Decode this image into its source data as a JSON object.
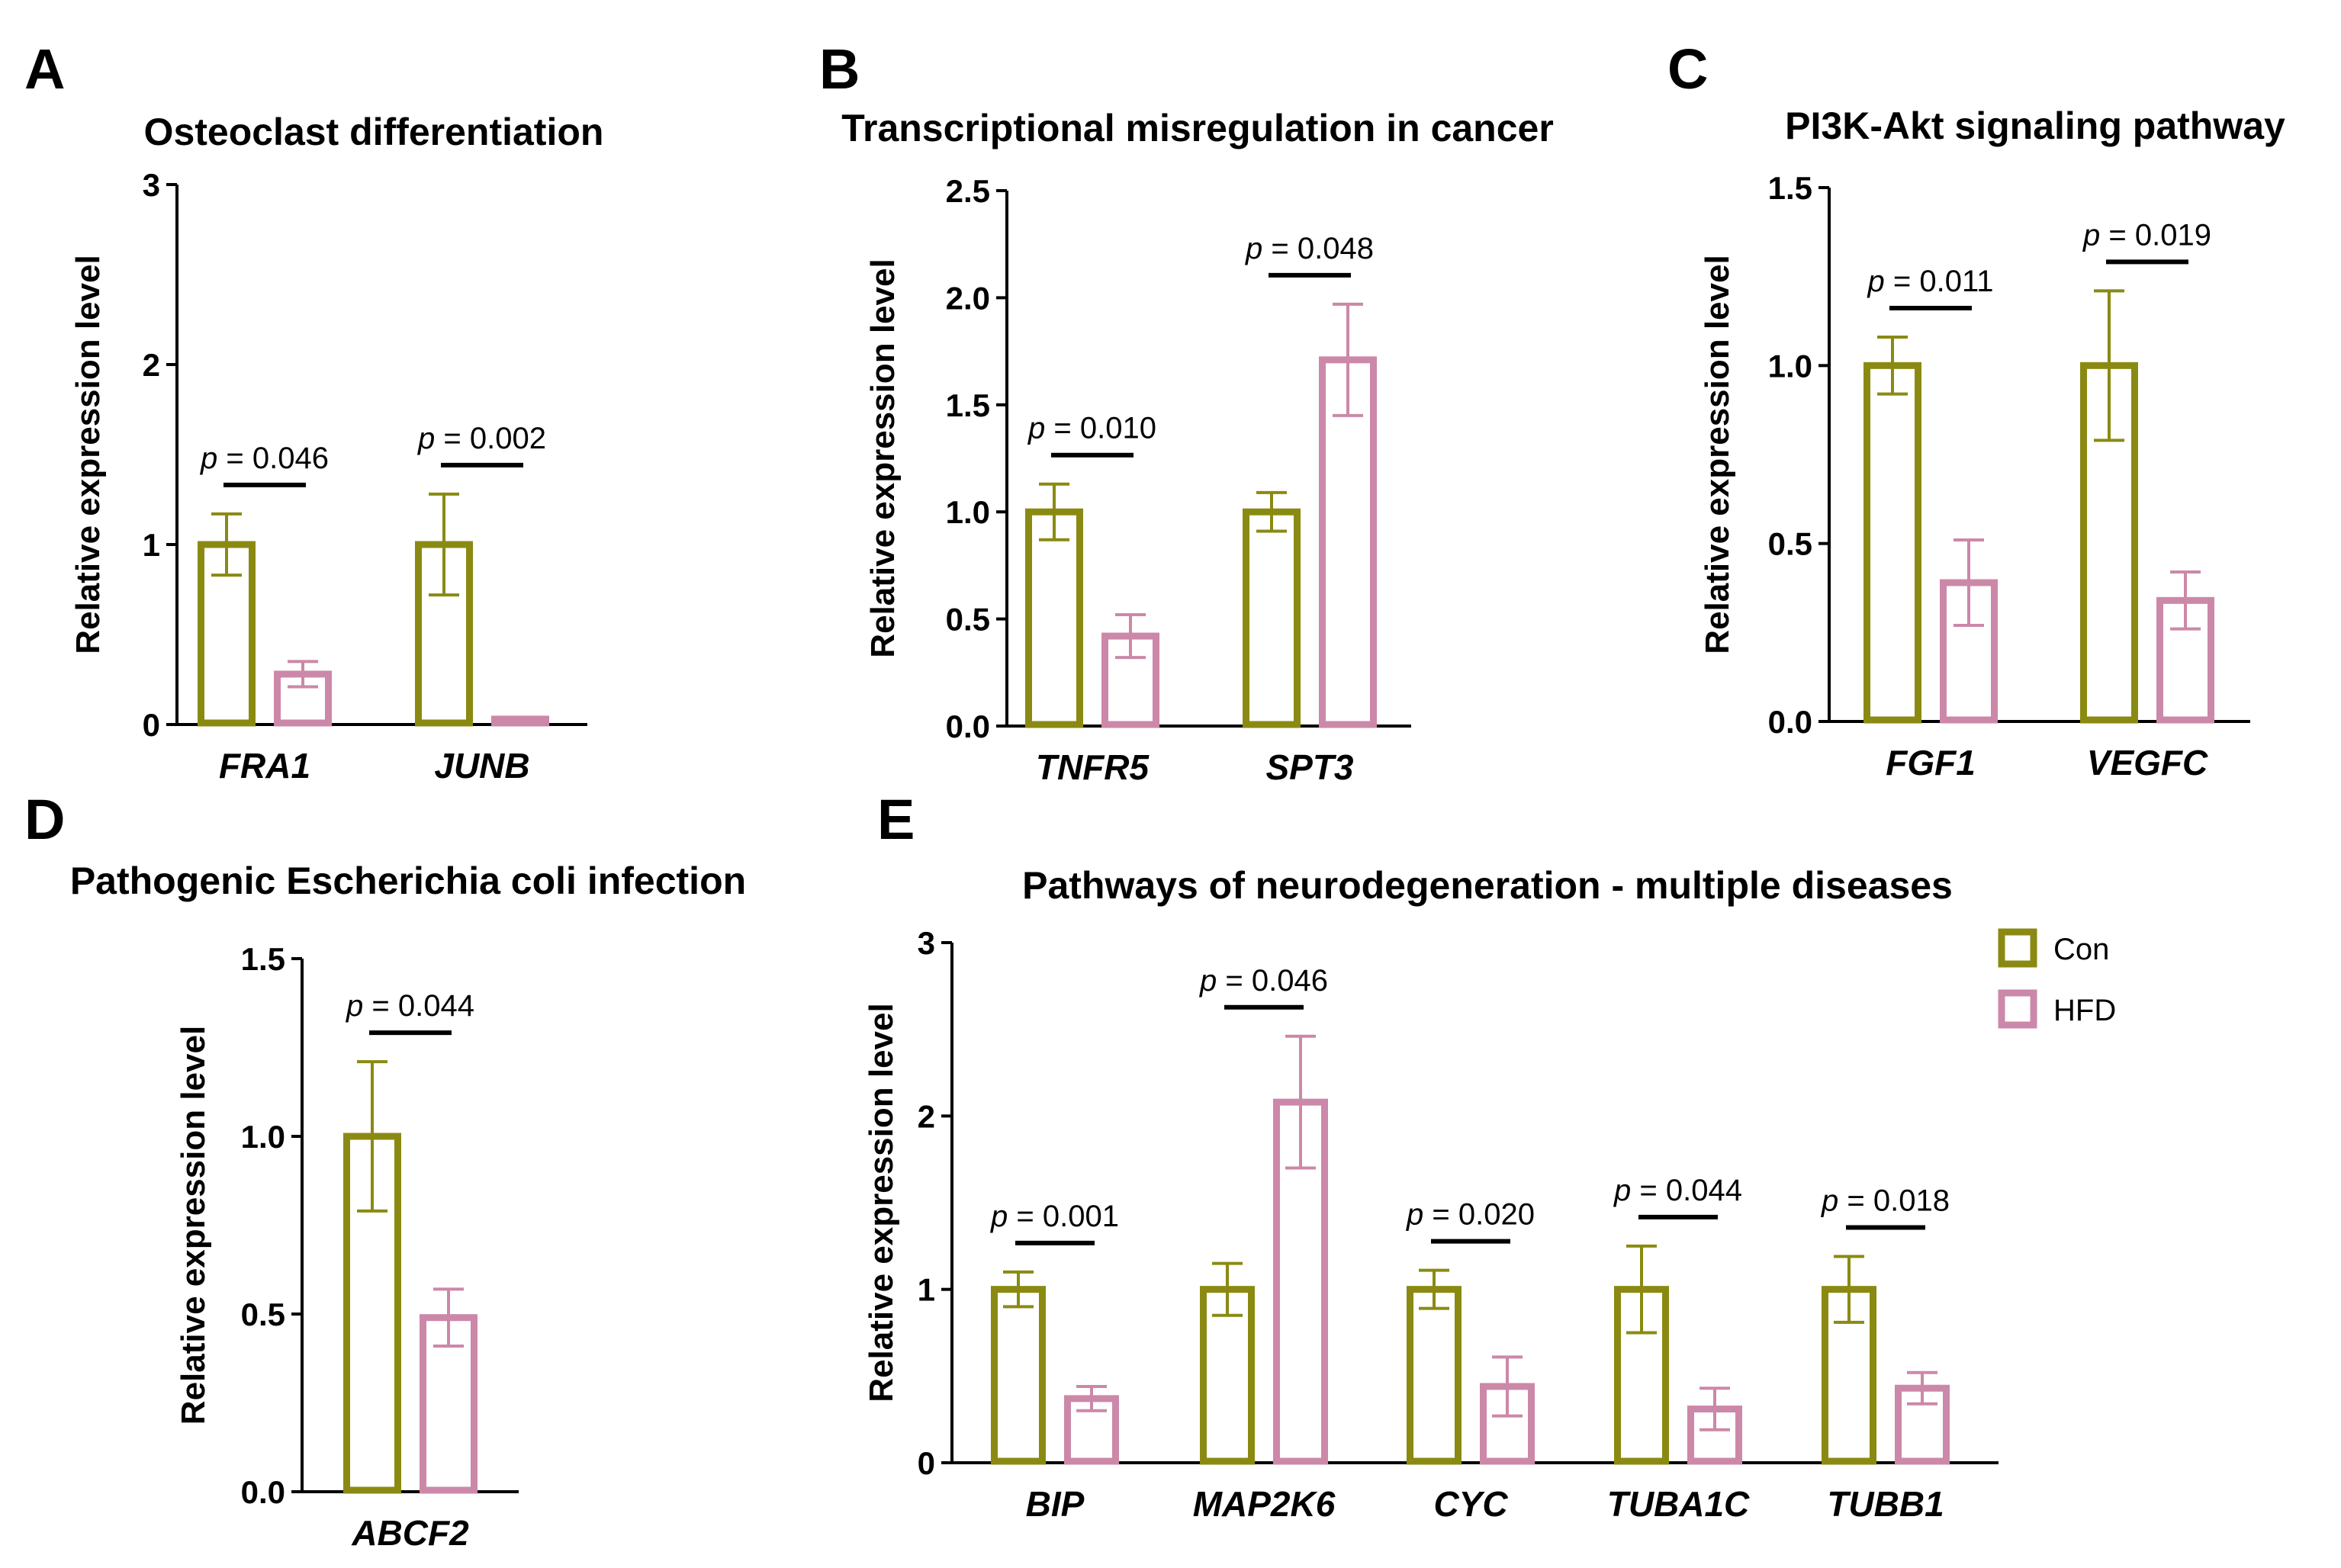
{
  "colors": {
    "con": "#8a8a12",
    "hfd": "#cc88a8",
    "axis": "#000000"
  },
  "legend": {
    "con_label": "Con",
    "hfd_label": "HFD"
  },
  "ylabel": "Relative expression level",
  "chart_data": [
    {
      "panel": "A",
      "type": "bar",
      "title": "Osteoclast differentiation",
      "ylabel": "Relative expression level",
      "ylim": [
        0,
        3
      ],
      "ticks": [
        0,
        1,
        2,
        3
      ],
      "tick_labels": [
        "0",
        "1",
        "2",
        "3"
      ],
      "categories": [
        "FRA1",
        "JUNB"
      ],
      "series": [
        {
          "name": "Con",
          "values": [
            1.0,
            1.0
          ],
          "errors": [
            0.17,
            0.28
          ]
        },
        {
          "name": "HFD",
          "values": [
            0.28,
            0.03
          ],
          "errors": [
            0.07,
            0.01
          ]
        }
      ],
      "pvalues": [
        "0.046",
        "0.002"
      ]
    },
    {
      "panel": "B",
      "type": "bar",
      "title": "Transcriptional misregulation in cancer",
      "ylabel": "Relative expression level",
      "ylim": [
        0,
        2.5
      ],
      "ticks": [
        0,
        0.5,
        1.0,
        1.5,
        2.0,
        2.5
      ],
      "tick_labels": [
        "0.0",
        "0.5",
        "1.0",
        "1.5",
        "2.0",
        "2.5"
      ],
      "categories": [
        "TNFR5",
        "SPT3"
      ],
      "series": [
        {
          "name": "Con",
          "values": [
            1.0,
            1.0
          ],
          "errors": [
            0.13,
            0.09
          ]
        },
        {
          "name": "HFD",
          "values": [
            0.42,
            1.71
          ],
          "errors": [
            0.1,
            0.26
          ]
        }
      ],
      "pvalues": [
        "0.010",
        "0.048"
      ]
    },
    {
      "panel": "C",
      "type": "bar",
      "title": "PI3K-Akt signaling pathway",
      "ylabel": "Relative expression level",
      "ylim": [
        0,
        1.5
      ],
      "ticks": [
        0,
        0.5,
        1.0,
        1.5
      ],
      "tick_labels": [
        "0.0",
        "0.5",
        "1.0",
        "1.5"
      ],
      "categories": [
        "FGF1",
        "VEGFC"
      ],
      "series": [
        {
          "name": "Con",
          "values": [
            1.0,
            1.0
          ],
          "errors": [
            0.08,
            0.21
          ]
        },
        {
          "name": "HFD",
          "values": [
            0.39,
            0.34
          ],
          "errors": [
            0.12,
            0.08
          ]
        }
      ],
      "pvalues": [
        "0.011",
        "0.019"
      ]
    },
    {
      "panel": "D",
      "type": "bar",
      "title": "Pathogenic Escherichia coli infection",
      "ylabel": "Relative expression level",
      "ylim": [
        0,
        1.5
      ],
      "ticks": [
        0,
        0.5,
        1.0,
        1.5
      ],
      "tick_labels": [
        "0.0",
        "0.5",
        "1.0",
        "1.5"
      ],
      "categories": [
        "ABCF2"
      ],
      "series": [
        {
          "name": "Con",
          "values": [
            1.0
          ],
          "errors": [
            0.21
          ]
        },
        {
          "name": "HFD",
          "values": [
            0.49
          ],
          "errors": [
            0.08
          ]
        }
      ],
      "pvalues": [
        "0.044"
      ]
    },
    {
      "panel": "E",
      "type": "bar",
      "title": "Pathways of neurodegeneration - multiple diseases",
      "ylabel": "Relative expression level",
      "ylim": [
        0,
        3
      ],
      "ticks": [
        0,
        1,
        2,
        3
      ],
      "tick_labels": [
        "0",
        "1",
        "2",
        "3"
      ],
      "categories": [
        "BIP",
        "MAP2K6",
        "CYC",
        "TUBA1C",
        "TUBB1"
      ],
      "series": [
        {
          "name": "Con",
          "values": [
            1.0,
            1.0,
            1.0,
            1.0,
            1.0
          ],
          "errors": [
            0.1,
            0.15,
            0.11,
            0.25,
            0.19
          ]
        },
        {
          "name": "HFD",
          "values": [
            0.37,
            2.08,
            0.44,
            0.31,
            0.43
          ],
          "errors": [
            0.07,
            0.38,
            0.17,
            0.12,
            0.09
          ]
        }
      ],
      "pvalues": [
        "0.001",
        "0.046",
        "0.020",
        "0.044",
        "0.018"
      ]
    }
  ]
}
